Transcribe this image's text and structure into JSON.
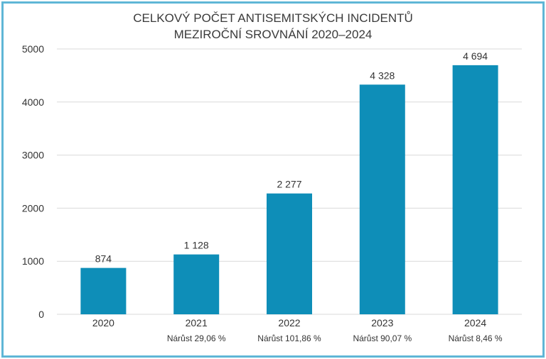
{
  "chart_data": {
    "type": "bar",
    "title_lines": [
      "CELKOVÝ POČET ANTISEMITSKÝCH INCIDENTŮ",
      "MEZIROČNÍ SROVNÁNÍ 2020–2024"
    ],
    "categories": [
      "2020",
      "2021",
      "2022",
      "2023",
      "2024"
    ],
    "values": [
      874,
      1128,
      2277,
      4328,
      4694
    ],
    "value_labels": [
      "874",
      "1 128",
      "2 277",
      "4 328",
      "4 694"
    ],
    "growth_labels": [
      "",
      "Nárůst 29,06 %",
      "Nárůst 101,86 %",
      "Nárůst 90,07 %",
      "Nárůst 8,46 %"
    ],
    "yticks": [
      "0",
      "1000",
      "2000",
      "3000",
      "4000",
      "5000"
    ],
    "ylim": [
      0,
      5000
    ],
    "grid": true,
    "colors": {
      "bar": "#0e8eb8",
      "grid": "#d9d9d9",
      "frame": "#5fb6d6"
    }
  }
}
